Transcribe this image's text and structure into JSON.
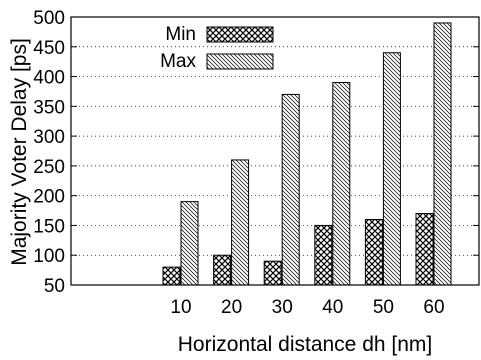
{
  "chart_data": {
    "type": "bar",
    "xlabel": "Horizontal distance dh [nm]",
    "ylabel": "Majority Voter Delay [ps]",
    "categories": [
      "10",
      "20",
      "30",
      "40",
      "50",
      "60"
    ],
    "ylim": [
      50,
      500
    ],
    "yticks": [
      "50",
      "100",
      "150",
      "200",
      "250",
      "300",
      "350",
      "400",
      "450",
      "500"
    ],
    "grid": "dotted horizontal",
    "legend_position": "top-left",
    "series": [
      {
        "name": "Min",
        "pattern": "crosshatch",
        "values": [
          80,
          100,
          90,
          150,
          160,
          170
        ]
      },
      {
        "name": "Max",
        "pattern": "diagonal",
        "values": [
          190,
          260,
          370,
          390,
          440,
          490
        ]
      }
    ]
  }
}
